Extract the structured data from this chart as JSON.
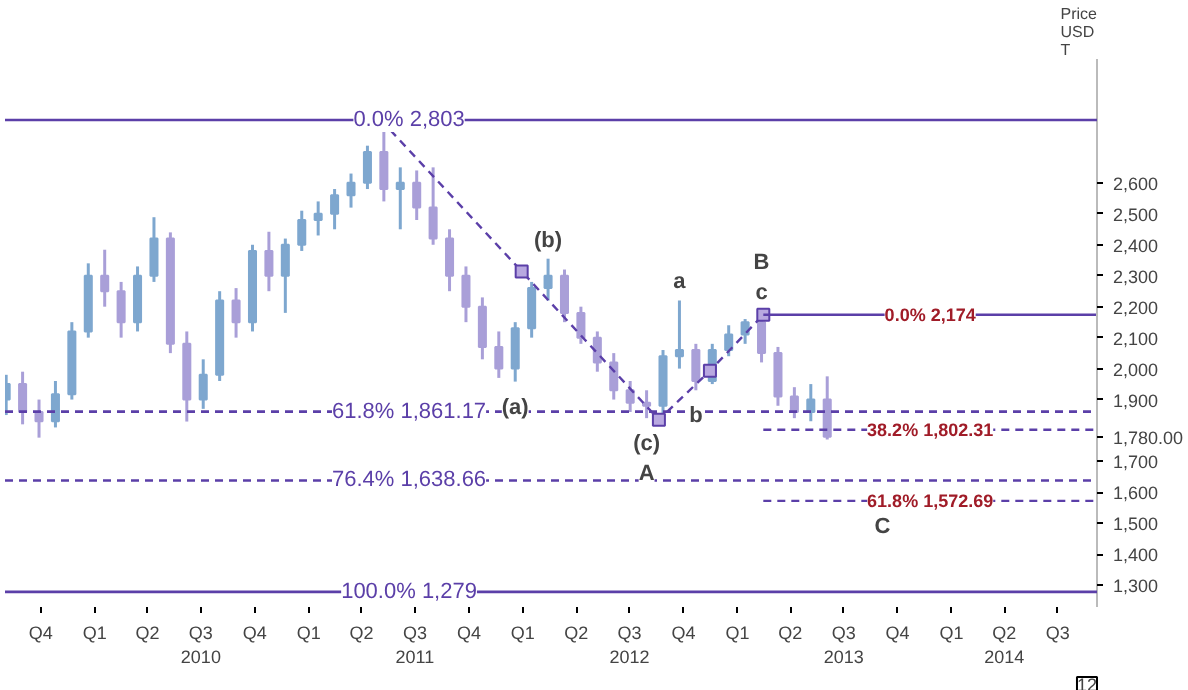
{
  "chart_data": {
    "type": "candlestick",
    "ylabel": "Price\nUSD\nT",
    "x": [
      "2009-08-03",
      "2009-08-31",
      "2009-09-28",
      "2009-10-26",
      "2009-11-23",
      "2009-12-21",
      "2010-01-18",
      "2010-02-15",
      "2010-03-15",
      "2010-04-12",
      "2010-05-10",
      "2010-06-07",
      "2010-07-05",
      "2010-08-02",
      "2010-08-30",
      "2010-09-27",
      "2010-10-25",
      "2010-11-22",
      "2010-12-20",
      "2011-01-17",
      "2011-02-14",
      "2011-03-14",
      "2011-04-11",
      "2011-05-09",
      "2011-06-06",
      "2011-07-04",
      "2011-08-01",
      "2011-08-29",
      "2011-09-26",
      "2011-10-24",
      "2011-11-21",
      "2011-12-19",
      "2012-01-16",
      "2012-02-13",
      "2012-03-12",
      "2012-04-09",
      "2012-05-07",
      "2012-06-04",
      "2012-07-02",
      "2012-07-30",
      "2012-08-27",
      "2012-09-24",
      "2012-10-22",
      "2012-11-19",
      "2012-12-17",
      "2013-01-14",
      "2013-02-11",
      "2013-03-11",
      "2013-04-08",
      "2013-05-06",
      "2013-06-03"
    ],
    "ohlc": [
      [
        1900,
        1980,
        1850,
        1950
      ],
      [
        1950,
        1990,
        1820,
        1860
      ],
      [
        1860,
        1900,
        1777,
        1830
      ],
      [
        1830,
        1960,
        1810,
        1917
      ],
      [
        1917,
        2150,
        1900,
        2120
      ],
      [
        2120,
        2340,
        2100,
        2300
      ],
      [
        2300,
        2384,
        2200,
        2250
      ],
      [
        2250,
        2280,
        2100,
        2150
      ],
      [
        2150,
        2330,
        2120,
        2300
      ],
      [
        2300,
        2489,
        2280,
        2420
      ],
      [
        2420,
        2440,
        2050,
        2080
      ],
      [
        2080,
        2120,
        1829,
        1900
      ],
      [
        1900,
        2030,
        1870,
        1980
      ],
      [
        1980,
        2250,
        1960,
        2220
      ],
      [
        2220,
        2260,
        2100,
        2150
      ],
      [
        2150,
        2400,
        2120,
        2380
      ],
      [
        2380,
        2442,
        2250,
        2300
      ],
      [
        2300,
        2420,
        2180,
        2400
      ],
      [
        2400,
        2510,
        2380,
        2480
      ],
      [
        2480,
        2540,
        2430,
        2500
      ],
      [
        2500,
        2580,
        2450,
        2560
      ],
      [
        2560,
        2630,
        2520,
        2600
      ],
      [
        2600,
        2720,
        2580,
        2700
      ],
      [
        2700,
        2803,
        2540,
        2580
      ],
      [
        2580,
        2650,
        2450,
        2600
      ],
      [
        2600,
        2640,
        2480,
        2520
      ],
      [
        2520,
        2650,
        2400,
        2420
      ],
      [
        2420,
        2450,
        2250,
        2300
      ],
      [
        2300,
        2330,
        2150,
        2200
      ],
      [
        2200,
        2230,
        2030,
        2070
      ],
      [
        2070,
        2120,
        1970,
        2000
      ],
      [
        2000,
        2150,
        1958,
        2130
      ],
      [
        2130,
        2280,
        2100,
        2260
      ],
      [
        2260,
        2355,
        2220,
        2300
      ],
      [
        2300,
        2320,
        2150,
        2180
      ],
      [
        2180,
        2200,
        2080,
        2100
      ],
      [
        2100,
        2120,
        1990,
        2020
      ],
      [
        2020,
        2050,
        1900,
        1930
      ],
      [
        1930,
        1960,
        1860,
        1890
      ],
      [
        1890,
        1930,
        1840,
        1880
      ],
      [
        1880,
        2060,
        1835,
        2040
      ],
      [
        2040,
        2220,
        2000,
        2060
      ],
      [
        2060,
        2080,
        1930,
        1960
      ],
      [
        1960,
        2080,
        1950,
        2060
      ],
      [
        2060,
        2140,
        2040,
        2110
      ],
      [
        2110,
        2160,
        2080,
        2150
      ],
      [
        2150,
        2185,
        2020,
        2050
      ],
      [
        2050,
        2070,
        1880,
        1910
      ],
      [
        1910,
        1940,
        1840,
        1860
      ],
      [
        1860,
        1950,
        1830,
        1900
      ],
      [
        1900,
        1975,
        1771,
        1780
      ]
    ],
    "series": [
      {
        "type": "line",
        "color": "#5b3fa8",
        "line_style": "dashed",
        "marker": "square",
        "x": [
          "2011-05-04",
          "2011-12-30",
          "2012-08-20",
          "2012-11-15",
          "2013-02-14"
        ],
        "values": [
          2803,
          2314,
          1835,
          1993,
          2174
        ]
      },
      {
        "type": "line",
        "name": "0.0% 2,174",
        "color": "#5b3fa8",
        "line_style": "solid",
        "x": [
          "2013-02-14",
          "2014-09-06"
        ],
        "values": [
          2174,
          2174
        ]
      },
      {
        "type": "line",
        "name": "38.2% 1,802.31",
        "color": "#5b3fa8",
        "line_style": "dashed",
        "x": [
          "2013-02-14",
          "2014-09-06"
        ],
        "values": [
          1802.31,
          1802.31
        ]
      },
      {
        "type": "line",
        "name": "61.8% 1,572.69",
        "color": "#5b3fa8",
        "line_style": "dashed",
        "x": [
          "2013-02-14",
          "2014-09-06"
        ],
        "values": [
          1572.69,
          1572.69
        ]
      }
    ],
    "ref_lines": [
      {
        "axis": "y",
        "value": 2803,
        "label": "0.0% 2,803",
        "color": "#5b3fa8",
        "line_style": "solid"
      },
      {
        "axis": "y",
        "value": 1861.17,
        "label": "61.8% 1,861.17",
        "color": "#5b3fa8",
        "line_style": "dashed"
      },
      {
        "axis": "y",
        "value": 1638.66,
        "label": "76.4% 1,638.66",
        "color": "#5b3fa8",
        "line_style": "dashed"
      },
      {
        "axis": "y",
        "value": 1279,
        "label": "100.0% 1,279",
        "color": "#5b3fa8",
        "line_style": "solid"
      }
    ],
    "annotations": [
      {
        "text": "(a)",
        "x": "2011-12-19",
        "y": 1958
      },
      {
        "text": "(b)",
        "x": "2012-02-13",
        "y": 2355
      },
      {
        "text": "(c)",
        "x": "2012-07-30",
        "y": 1840
      },
      {
        "text": "A",
        "x": "2012-07-30",
        "y": 1840
      },
      {
        "text": "a",
        "x": "2012-09-24",
        "y": 2220
      },
      {
        "text": "b",
        "x": "2012-10-22",
        "y": 1930
      },
      {
        "text": "c",
        "x": "2013-02-11",
        "y": 2185
      },
      {
        "text": "B",
        "x": "2013-02-11",
        "y": 2185
      },
      {
        "text": "C",
        "x": "2013-09-05",
        "y": 1572.69
      },
      "12"
    ],
    "xlim": [
      "2009-08-01",
      "2014-09-06"
    ],
    "xticks": [
      {
        "value": "2009-10-01",
        "label": "Q4"
      },
      {
        "value": "2010-01-01",
        "label": "Q1"
      },
      {
        "value": "2010-04-01",
        "label": "Q2"
      },
      {
        "value": "2010-07-01",
        "label": "Q3\n2010"
      },
      {
        "value": "2010-10-01",
        "label": "Q4"
      },
      {
        "value": "2011-01-01",
        "label": "Q1"
      },
      {
        "value": "2011-04-01",
        "label": "Q2"
      },
      {
        "value": "2011-07-01",
        "label": "Q3\n2011"
      },
      {
        "value": "2011-10-01",
        "label": "Q4"
      },
      {
        "value": "2012-01-01",
        "label": "Q1"
      },
      {
        "value": "2012-04-01",
        "label": "Q2"
      },
      {
        "value": "2012-07-01",
        "label": "Q3\n2012"
      },
      {
        "value": "2012-10-01",
        "label": "Q4"
      },
      {
        "value": "2013-01-01",
        "label": "Q1"
      },
      {
        "value": "2013-04-01",
        "label": "Q2"
      },
      {
        "value": "2013-07-01",
        "label": "Q3\n2013"
      },
      {
        "value": "2013-10-01",
        "label": "Q4"
      },
      {
        "value": "2014-01-01",
        "label": "Q1"
      },
      {
        "value": "2014-04-01",
        "label": "Q2\n2014"
      },
      {
        "value": "2014-07-01",
        "label": "Q3"
      }
    ],
    "ylim": [
      1230,
      3000
    ],
    "yticks": [
      {
        "value": 1300,
        "label": "1,300"
      },
      {
        "value": 1400,
        "label": "1,400"
      },
      {
        "value": 1500,
        "label": "1,500"
      },
      {
        "value": 1600,
        "label": "1,600"
      },
      {
        "value": 1700,
        "label": "1,700"
      },
      {
        "value": 1780,
        "label": "1,780.00"
      },
      {
        "value": 1900,
        "label": "1,900"
      },
      {
        "value": 2000,
        "label": "2,000"
      },
      {
        "value": 2100,
        "label": "2,100"
      },
      {
        "value": 2200,
        "label": "2,200"
      },
      {
        "value": 2300,
        "label": "2,300"
      },
      {
        "value": 2400,
        "label": "2,400"
      },
      {
        "value": 2500,
        "label": "2,500"
      },
      {
        "value": 2600,
        "label": "2,600"
      }
    ],
    "grid": false
  }
}
